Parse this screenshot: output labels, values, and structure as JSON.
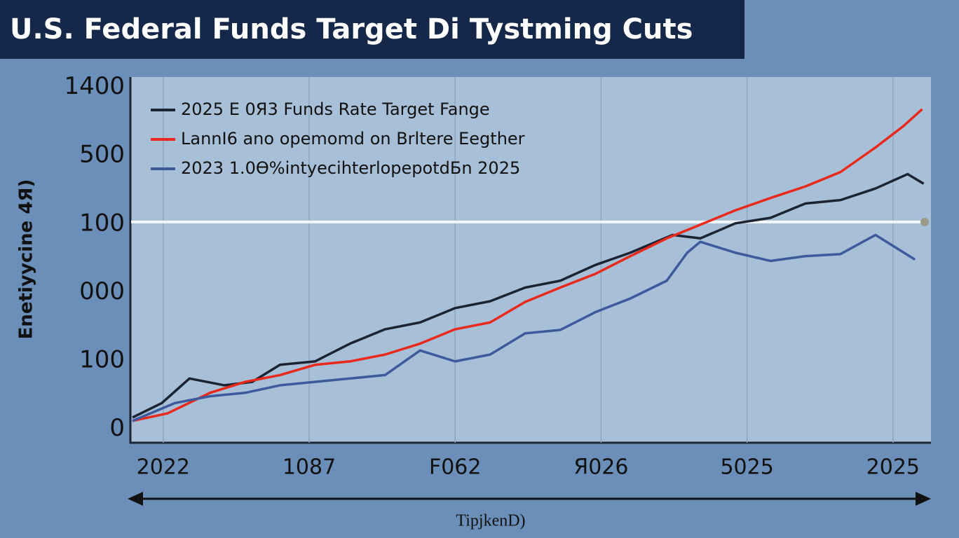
{
  "chart_data": {
    "type": "line",
    "title": "U.S. Federal Funds Target Di Tystming Cuts",
    "x_label": "TipjkenD)",
    "y_label": "Enetiyycine 4Я)",
    "categories": [
      "2022",
      "1087",
      "F062",
      "Я026",
      "5025",
      "2025"
    ],
    "y_categories": [
      "0",
      "100",
      "000",
      "100",
      "500",
      "1400"
    ],
    "xlim": [
      -0.22,
      5.26
    ],
    "ylim": [
      -0.2,
      5.15
    ],
    "grid": true,
    "legend": "top-left",
    "reference_line": 3.03,
    "series": [
      {
        "name": "2025 E 0Я3 Funds Rate Target Fange",
        "color": "#1c2433",
        "x": [
          -0.21,
          -0.01,
          0.18,
          0.42,
          0.61,
          0.8,
          1.04,
          1.28,
          1.52,
          1.76,
          2.0,
          2.24,
          2.48,
          2.72,
          2.96,
          3.2,
          3.49,
          3.68,
          3.92,
          4.16,
          4.4,
          4.64,
          4.88,
          5.1,
          5.21
        ],
        "values": [
          0.17,
          0.38,
          0.74,
          0.64,
          0.69,
          0.94,
          0.99,
          1.25,
          1.46,
          1.56,
          1.77,
          1.87,
          2.07,
          2.17,
          2.4,
          2.58,
          2.84,
          2.79,
          3.01,
          3.09,
          3.3,
          3.35,
          3.52,
          3.73,
          3.59
        ]
      },
      {
        "name": "LannI6 ano opemomd on Brltere Eegther",
        "color": "#e8291c",
        "x": [
          -0.21,
          0.03,
          0.32,
          0.56,
          0.8,
          1.04,
          1.28,
          1.52,
          1.76,
          2.0,
          2.24,
          2.48,
          2.72,
          2.96,
          3.2,
          3.45,
          3.68,
          3.92,
          4.16,
          4.4,
          4.64,
          4.88,
          5.07,
          5.2
        ],
        "values": [
          0.12,
          0.23,
          0.53,
          0.69,
          0.79,
          0.94,
          0.99,
          1.09,
          1.25,
          1.46,
          1.56,
          1.86,
          2.07,
          2.27,
          2.53,
          2.79,
          2.99,
          3.2,
          3.38,
          3.55,
          3.76,
          4.12,
          4.43,
          4.68
        ]
      },
      {
        "name": "2023 1.0Ѳ%intyecihterlopepotdБn 2025",
        "color": "#3d5a9c",
        "x": [
          -0.21,
          0.08,
          0.32,
          0.56,
          0.8,
          1.04,
          1.28,
          1.52,
          1.76,
          2.0,
          2.24,
          2.48,
          2.72,
          2.96,
          3.2,
          3.45,
          3.59,
          3.68,
          3.92,
          4.16,
          4.4,
          4.64,
          4.88,
          5.15
        ],
        "values": [
          0.12,
          0.38,
          0.48,
          0.53,
          0.64,
          0.69,
          0.74,
          0.79,
          1.15,
          0.99,
          1.09,
          1.4,
          1.45,
          1.71,
          1.91,
          2.17,
          2.58,
          2.74,
          2.58,
          2.46,
          2.53,
          2.56,
          2.84,
          2.48
        ]
      }
    ]
  }
}
